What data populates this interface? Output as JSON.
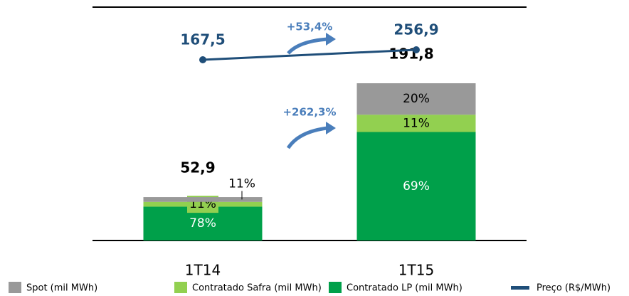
{
  "chart_data": {
    "type": "bar",
    "categories": [
      "1T14",
      "1T15"
    ],
    "totals": [
      52.9,
      191.8
    ],
    "total_labels": [
      "52,9",
      "191,8"
    ],
    "series": [
      {
        "name": "Contratado LP (mil MWh)",
        "color": "#00a04a",
        "values": [
          78,
          69
        ],
        "value_labels": [
          "78%",
          "69%"
        ]
      },
      {
        "name": "Contratado Safra (mil MWh)",
        "color": "#92d050",
        "values": [
          11,
          11
        ],
        "value_labels": [
          "11%",
          "11%"
        ]
      },
      {
        "name": "Spot (mil MWh)",
        "color": "#999999",
        "values": [
          11,
          20
        ],
        "value_labels": [
          "11%",
          "20%"
        ]
      },
      {
        "name": "Preço (R$/MWh)",
        "type": "line",
        "axis": "y2",
        "color": "#1f4e79",
        "values": [
          167.5,
          256.9
        ],
        "value_labels": [
          "167,5",
          "256,9"
        ]
      }
    ],
    "annotations": [
      "+53,4%",
      "+262,3%"
    ]
  }
}
